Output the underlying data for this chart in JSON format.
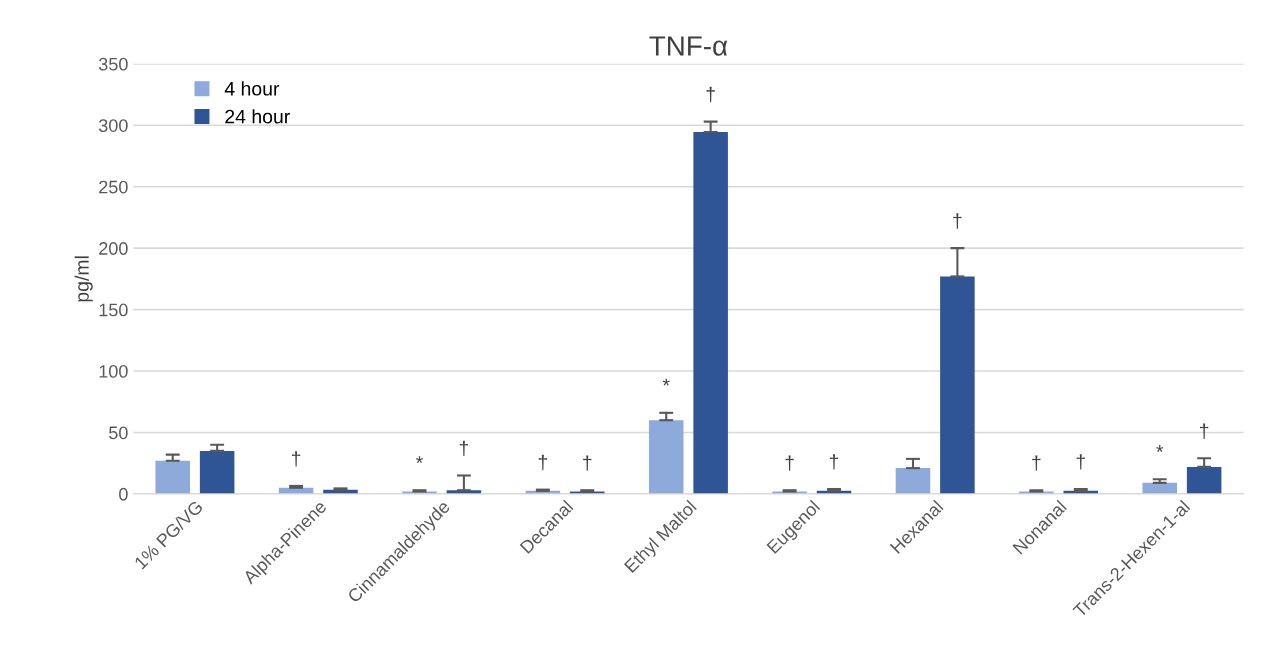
{
  "chart_data": {
    "type": "bar",
    "title": "TNF-α",
    "ylabel": "pg/ml",
    "categories": [
      "1% PG/VG",
      "Alpha-Pinene",
      "Cinnamaldehyde",
      "Decanal",
      "Ethyl Maltol",
      "Eugenol",
      "Hexanal",
      "Nonanal",
      "Trans-2-Hexen-1-al"
    ],
    "series": [
      {
        "name": "4 hour",
        "color": "#8eaadb",
        "values": [
          27,
          5,
          2,
          2.5,
          60,
          2,
          21,
          2,
          9
        ],
        "errors": [
          [
            27,
            32
          ],
          [
            5,
            6.5
          ],
          [
            2,
            3
          ],
          [
            2.5,
            3.5
          ],
          [
            60,
            66
          ],
          [
            2,
            3
          ],
          [
            21,
            28.5
          ],
          [
            2,
            3
          ],
          [
            9,
            12
          ]
        ],
        "value_labels": [
          null,
          "†",
          "*",
          "†",
          "*",
          "†",
          null,
          "†",
          "*"
        ]
      },
      {
        "name": "24 hour",
        "color": "#2f5597",
        "values": [
          35,
          3.3,
          3,
          2,
          294.5,
          2.5,
          177,
          2.5,
          22
        ],
        "errors": [
          [
            35,
            40
          ],
          [
            3.3,
            4.5
          ],
          [
            3,
            15
          ],
          [
            2,
            3
          ],
          [
            294.5,
            303
          ],
          [
            2.5,
            4
          ],
          [
            177,
            200
          ],
          [
            2.5,
            4
          ],
          [
            22,
            29
          ]
        ],
        "value_labels": [
          null,
          null,
          "†",
          "†",
          "†",
          "†",
          "†",
          "†",
          "†"
        ]
      }
    ],
    "ylim": [
      0,
      350
    ],
    "yticks": [
      0,
      50,
      100,
      150,
      200,
      250,
      300,
      350
    ],
    "grid": "y",
    "legend": "top left"
  }
}
